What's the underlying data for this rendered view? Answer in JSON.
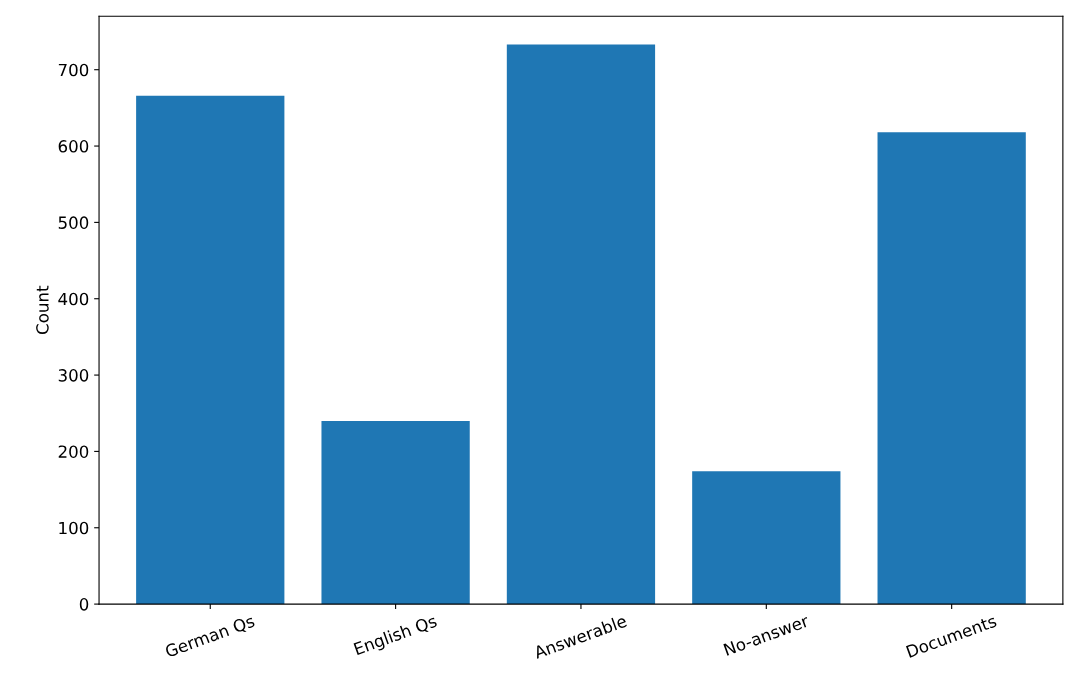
{
  "chart_data": {
    "type": "bar",
    "ylabel": "Count",
    "categories": [
      "German Qs",
      "English Qs",
      "Answerable",
      "No-answer",
      "Documents"
    ],
    "values": [
      666,
      240,
      733,
      174,
      618
    ],
    "color": "#1f77b4",
    "ylim": [
      0,
      770
    ],
    "yticks": [
      0,
      100,
      200,
      300,
      400,
      500,
      600,
      700
    ],
    "grid": false,
    "legend": false
  }
}
